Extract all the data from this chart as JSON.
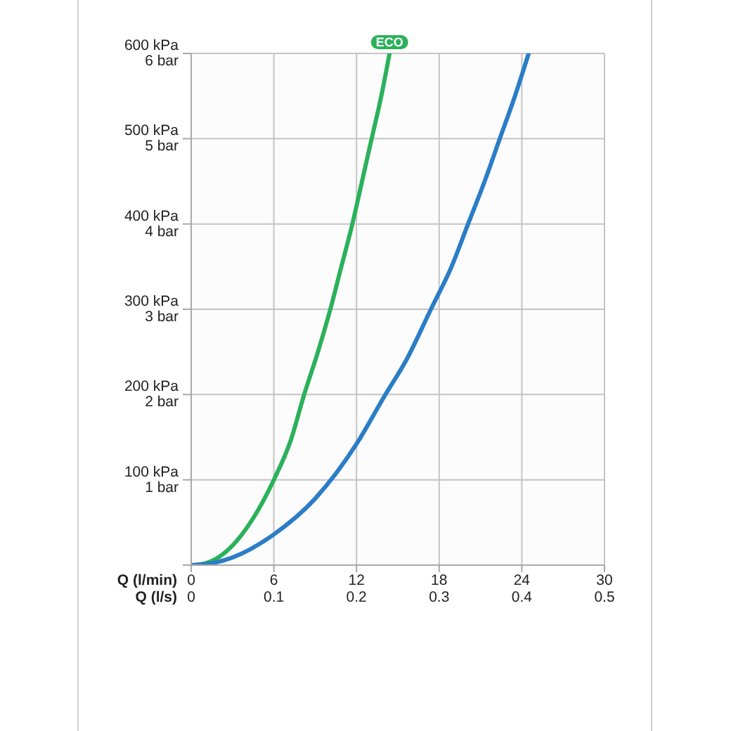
{
  "chart_data": {
    "type": "line",
    "xlabel": "Q (l/min)",
    "xlim": [
      0,
      30
    ],
    "xticks": [
      0,
      6,
      12,
      18,
      24,
      30
    ],
    "x2label": "Q (l/s)",
    "x2lim": [
      0,
      0.5
    ],
    "x2ticks": [
      0,
      0.1,
      0.2,
      0.3,
      0.4,
      0.5
    ],
    "ylim": [
      0,
      600
    ],
    "yticks": [
      {
        "value": 0,
        "label": null
      },
      {
        "value": 100,
        "label": "100 kPa"
      },
      {
        "value": 200,
        "label": "200 kPa"
      },
      {
        "value": 300,
        "label": "300 kPa"
      },
      {
        "value": 400,
        "label": "400 kPa"
      },
      {
        "value": 500,
        "label": "500 kPa"
      },
      {
        "value": 600,
        "label": "600 kPa"
      }
    ],
    "y2lim": [
      0,
      6
    ],
    "y2ticks": [
      {
        "value": 1,
        "label": "1 bar"
      },
      {
        "value": 2,
        "label": "2 bar"
      },
      {
        "value": 3,
        "label": "3 bar"
      },
      {
        "value": 4,
        "label": "4 bar"
      },
      {
        "value": 5,
        "label": "5 bar"
      },
      {
        "value": 6,
        "label": "6 bar"
      }
    ],
    "grid": true,
    "series": [
      {
        "name": "ECO",
        "color": "#2bb15b",
        "x": [
          0,
          1,
          3,
          4.5,
          6,
          7.2,
          8.2,
          9.2,
          10.1,
          10.9,
          11.7,
          12.4,
          13.1,
          13.8,
          14.4
        ],
        "values": [
          0,
          2,
          23,
          55,
          100,
          145,
          200,
          250,
          300,
          350,
          400,
          450,
          500,
          550,
          600
        ]
      },
      {
        "color": "#2a7dc6",
        "x": [
          0,
          1,
          3,
          6,
          9,
          12,
          14.1,
          15.6,
          17.4,
          18.9,
          20.1,
          21.3,
          22.4,
          23.5,
          24.5
        ],
        "values": [
          0,
          1,
          9,
          36,
          78,
          142,
          200,
          240,
          300,
          350,
          400,
          450,
          500,
          550,
          600
        ]
      }
    ]
  }
}
